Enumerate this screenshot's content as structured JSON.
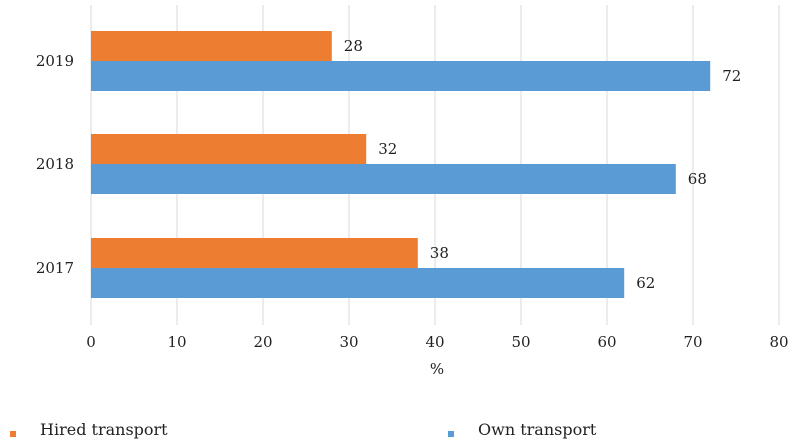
{
  "chart_data": {
    "type": "bar",
    "orientation": "horizontal",
    "categories": [
      "2017",
      "2018",
      "2019"
    ],
    "series": [
      {
        "name": "Hired transport",
        "values": [
          38,
          32,
          28
        ],
        "color": "#ED7D31"
      },
      {
        "name": "Own transport",
        "values": [
          62,
          68,
          72
        ],
        "color": "#5B9BD5"
      }
    ],
    "xlabel": "%",
    "ylabel": "",
    "xlim": [
      0,
      80
    ],
    "xticks": [
      0,
      10,
      20,
      30,
      40,
      50,
      60,
      70,
      80
    ],
    "grid": true,
    "legend_position": "bottom",
    "data_labels": true
  }
}
